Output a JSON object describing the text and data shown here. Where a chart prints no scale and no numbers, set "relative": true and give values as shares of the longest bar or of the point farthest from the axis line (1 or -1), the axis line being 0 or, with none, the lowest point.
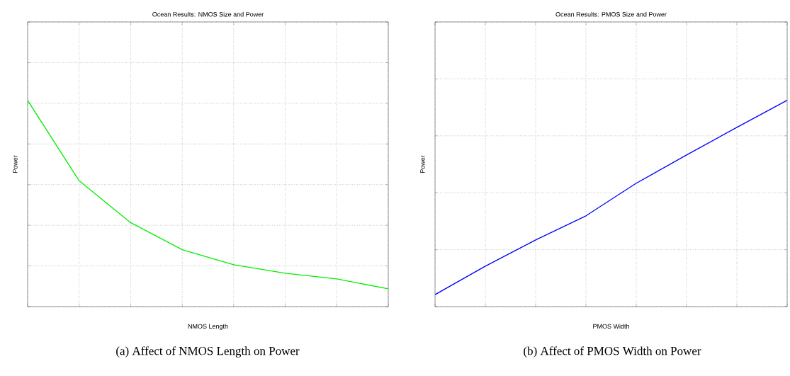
{
  "chart_data": [
    {
      "type": "line",
      "title": "Ocean Results: NMOS Size and Power",
      "xlabel": "NMOS Length",
      "ylabel": "Power",
      "annotations": [
        "(a) Affect of NMOS Length on Power"
      ],
      "categories": [
        null,
        null,
        null,
        null,
        null,
        null,
        null,
        null
      ],
      "relative": true,
      "grid": true,
      "marker": "none",
      "line_style": "solid",
      "series": [
        {
          "color": "#00ee00",
          "values": [
            1,
            0.61,
            0.407,
            0.276,
            0.203,
            0.162,
            0.134,
            0.086
          ]
        }
      ]
    },
    {
      "type": "line",
      "title": "Ocean Results: PMOS Size and Power",
      "xlabel": "PMOS Width",
      "ylabel": "Power",
      "annotations": [
        "(b) Affect of PMOS Width on Power"
      ],
      "categories": [
        null,
        null,
        null,
        null,
        null,
        null,
        null,
        null
      ],
      "relative": true,
      "grid": true,
      "marker": "none",
      "line_style": "solid",
      "series": [
        {
          "color": "#0000ff",
          "values": [
            0.058,
            0.196,
            0.323,
            0.44,
            0.598,
            0.735,
            0.869,
            1
          ]
        }
      ]
    }
  ]
}
